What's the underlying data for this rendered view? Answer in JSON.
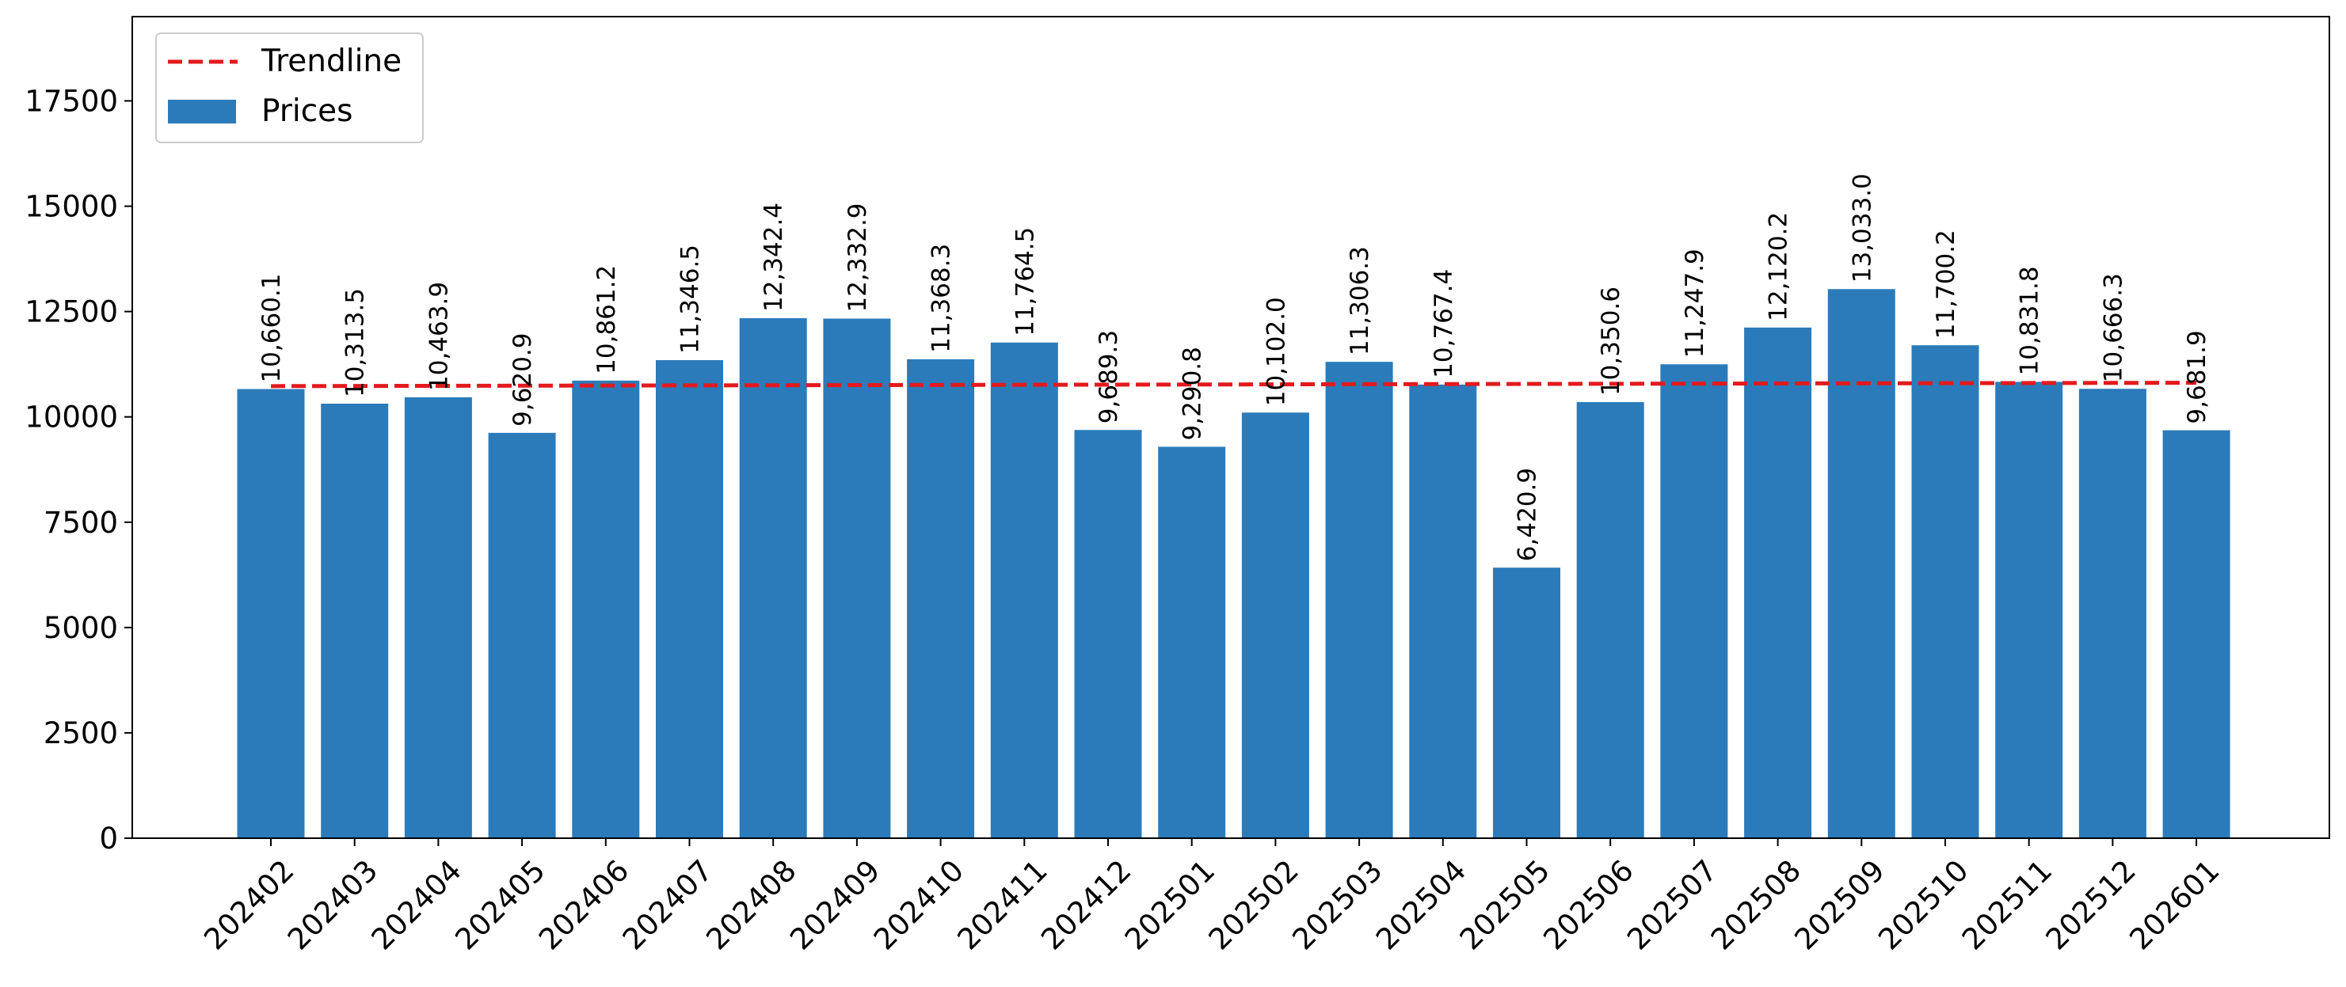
{
  "chart_data": {
    "type": "bar",
    "title": "",
    "xlabel": "",
    "ylabel": "",
    "categories": [
      "202402",
      "202403",
      "202404",
      "202405",
      "202406",
      "202407",
      "202408",
      "202409",
      "202410",
      "202411",
      "202412",
      "202501",
      "202502",
      "202503",
      "202504",
      "202505",
      "202506",
      "202507",
      "202508",
      "202509",
      "202510",
      "202511",
      "202512",
      "202601"
    ],
    "series": [
      {
        "name": "Prices",
        "kind": "bar",
        "color": "#2b7bba",
        "values": [
          10660.1,
          10313.5,
          10463.9,
          9620.9,
          10861.2,
          11346.5,
          12342.4,
          12332.9,
          11368.3,
          11764.5,
          9689.3,
          9290.8,
          10102.0,
          11306.3,
          10767.4,
          6420.9,
          10350.6,
          11247.9,
          12120.2,
          13033.0,
          11700.2,
          10831.8,
          10666.3,
          9681.9
        ],
        "labels": [
          "10,660.1",
          "10,313.5",
          "10,463.9",
          "9,620.9",
          "10,861.2",
          "11,346.5",
          "12,342.4",
          "12,332.9",
          "11,368.3",
          "11,764.5",
          "9,689.3",
          "9,290.8",
          "10,102.0",
          "11,306.3",
          "10,767.4",
          "6,420.9",
          "10,350.6",
          "11,247.9",
          "12,120.2",
          "13,033.0",
          "11,700.2",
          "10,831.8",
          "10,666.3",
          "9,681.9"
        ]
      },
      {
        "name": "Trendline",
        "kind": "line",
        "style": "dashed",
        "color": "#e31a1c",
        "start": 10730,
        "end": 10810
      }
    ],
    "ylim": [
      0,
      19500
    ],
    "yticks": [
      0,
      2500,
      5000,
      7500,
      10000,
      12500,
      15000,
      17500
    ],
    "grid": false,
    "legend": {
      "position": "top-left",
      "order": [
        "Trendline",
        "Prices"
      ]
    }
  }
}
